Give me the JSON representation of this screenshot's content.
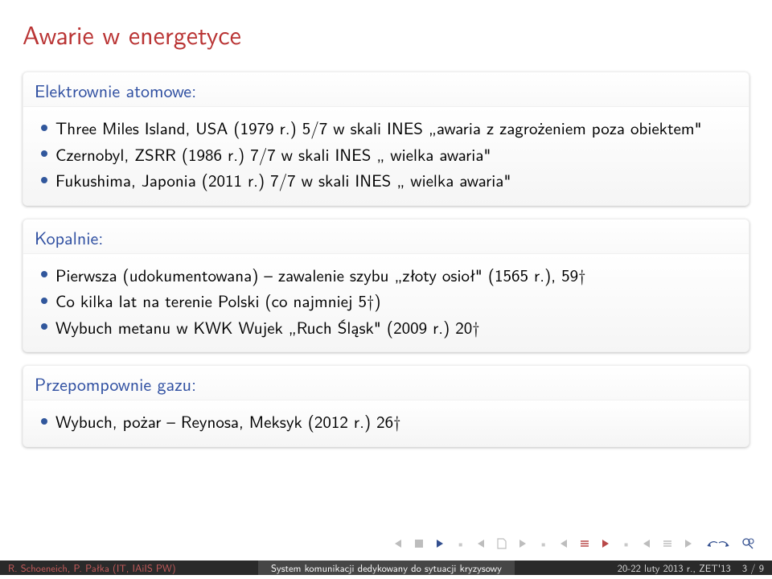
{
  "colors": {
    "title": "#b93333",
    "block_title": "#2f4fa1",
    "bullet": "#31579c",
    "nav_gray": "#bdbdbd",
    "nav_struct": "#334f8f",
    "nav_red": "#b84848",
    "foot_a_bg": "#2a2a2a",
    "foot_b_bg": "#464646",
    "foot_c_bg": "#2a2a2a",
    "foot_red": "#c85c5c"
  },
  "title": "Awarie w energetyce",
  "blocks": [
    {
      "title": "Elektrownie atomowe:",
      "items": [
        "Three Miles Island, USA (1979 r.) 5/7 w skali INES „awaria z zagrożeniem poza obiektem\"",
        "Czernobyl, ZSRR (1986 r.) 7/7 w skali INES „ wielka awaria\"",
        "Fukushima, Japonia (2011 r.) 7/7 w skali INES „ wielka awaria\""
      ]
    },
    {
      "title": "Kopalnie:",
      "items": [
        "Pierwsza (udokumentowana) – zawalenie szybu „złoty osioł\" (1565 r.), 59†",
        "Co kilka lat na terenie Polski (co najmniej 5†)",
        "Wybuch metanu w KWK Wujek „Ruch Śląsk\" (2009 r.) 20†"
      ]
    },
    {
      "title": "Przepompownie gazu:",
      "items": [
        "Wybuch, pożar – Reynosa, Meksyk (2012 r.) 26†"
      ]
    }
  ],
  "footer": {
    "authors": "R. Schoeneich, P. Pałka (IT, IAiIS PW)",
    "center": "System komunikacji dedykowany do sytuacji kryzysowy",
    "date": "20-22 luty 2013 r., ZET'13",
    "page": "3 / 9"
  }
}
